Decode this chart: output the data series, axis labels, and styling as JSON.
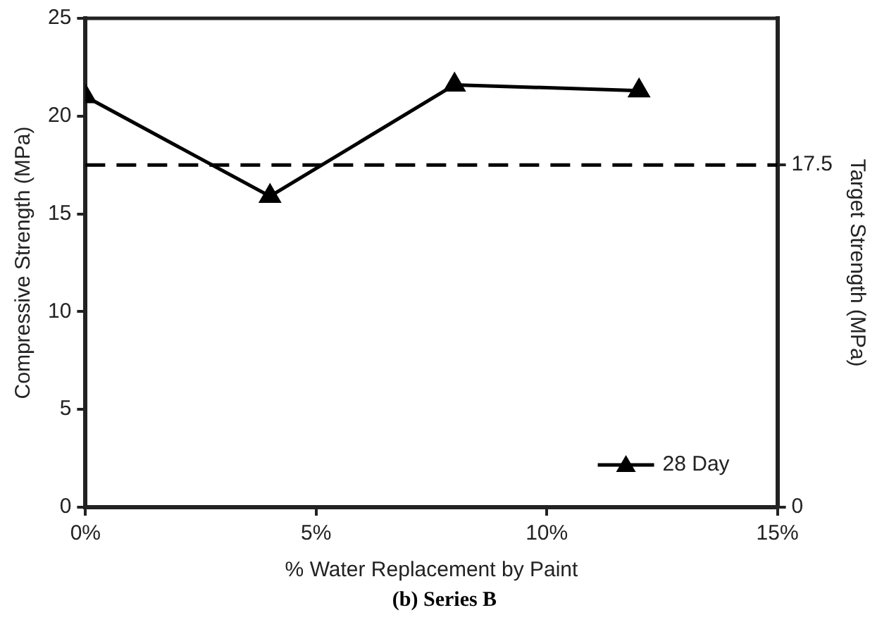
{
  "chart_data": {
    "type": "line",
    "xlabel": "% Water Replacement by Paint",
    "ylabel": "Compressive Strength (MPa)",
    "y2label": "Target Strength (MPa)",
    "x": [
      0,
      4,
      8,
      12
    ],
    "series": [
      {
        "name": "28 Day",
        "color": "#000000",
        "values": [
          21.0,
          15.9,
          21.6,
          21.3
        ]
      }
    ],
    "xlim": [
      0,
      15
    ],
    "xticks": [
      {
        "value": 0,
        "label": "0%"
      },
      {
        "value": 5,
        "label": "5%"
      },
      {
        "value": 10,
        "label": "10%"
      },
      {
        "value": 15,
        "label": "15%"
      }
    ],
    "ylim": [
      0,
      25
    ],
    "yticks": [
      0,
      5,
      10,
      15,
      20,
      25
    ],
    "y2lim": [
      0,
      25
    ],
    "y2ticks": [
      0,
      17.5
    ],
    "ref_lines": [
      {
        "axis": "y",
        "value": 17.5,
        "line_style": "dashed",
        "color": "#000000"
      }
    ],
    "marker": "triangle",
    "line_style": "solid",
    "grid": false,
    "legend": "bottom right",
    "annotations": [
      "(b) Series B"
    ]
  }
}
